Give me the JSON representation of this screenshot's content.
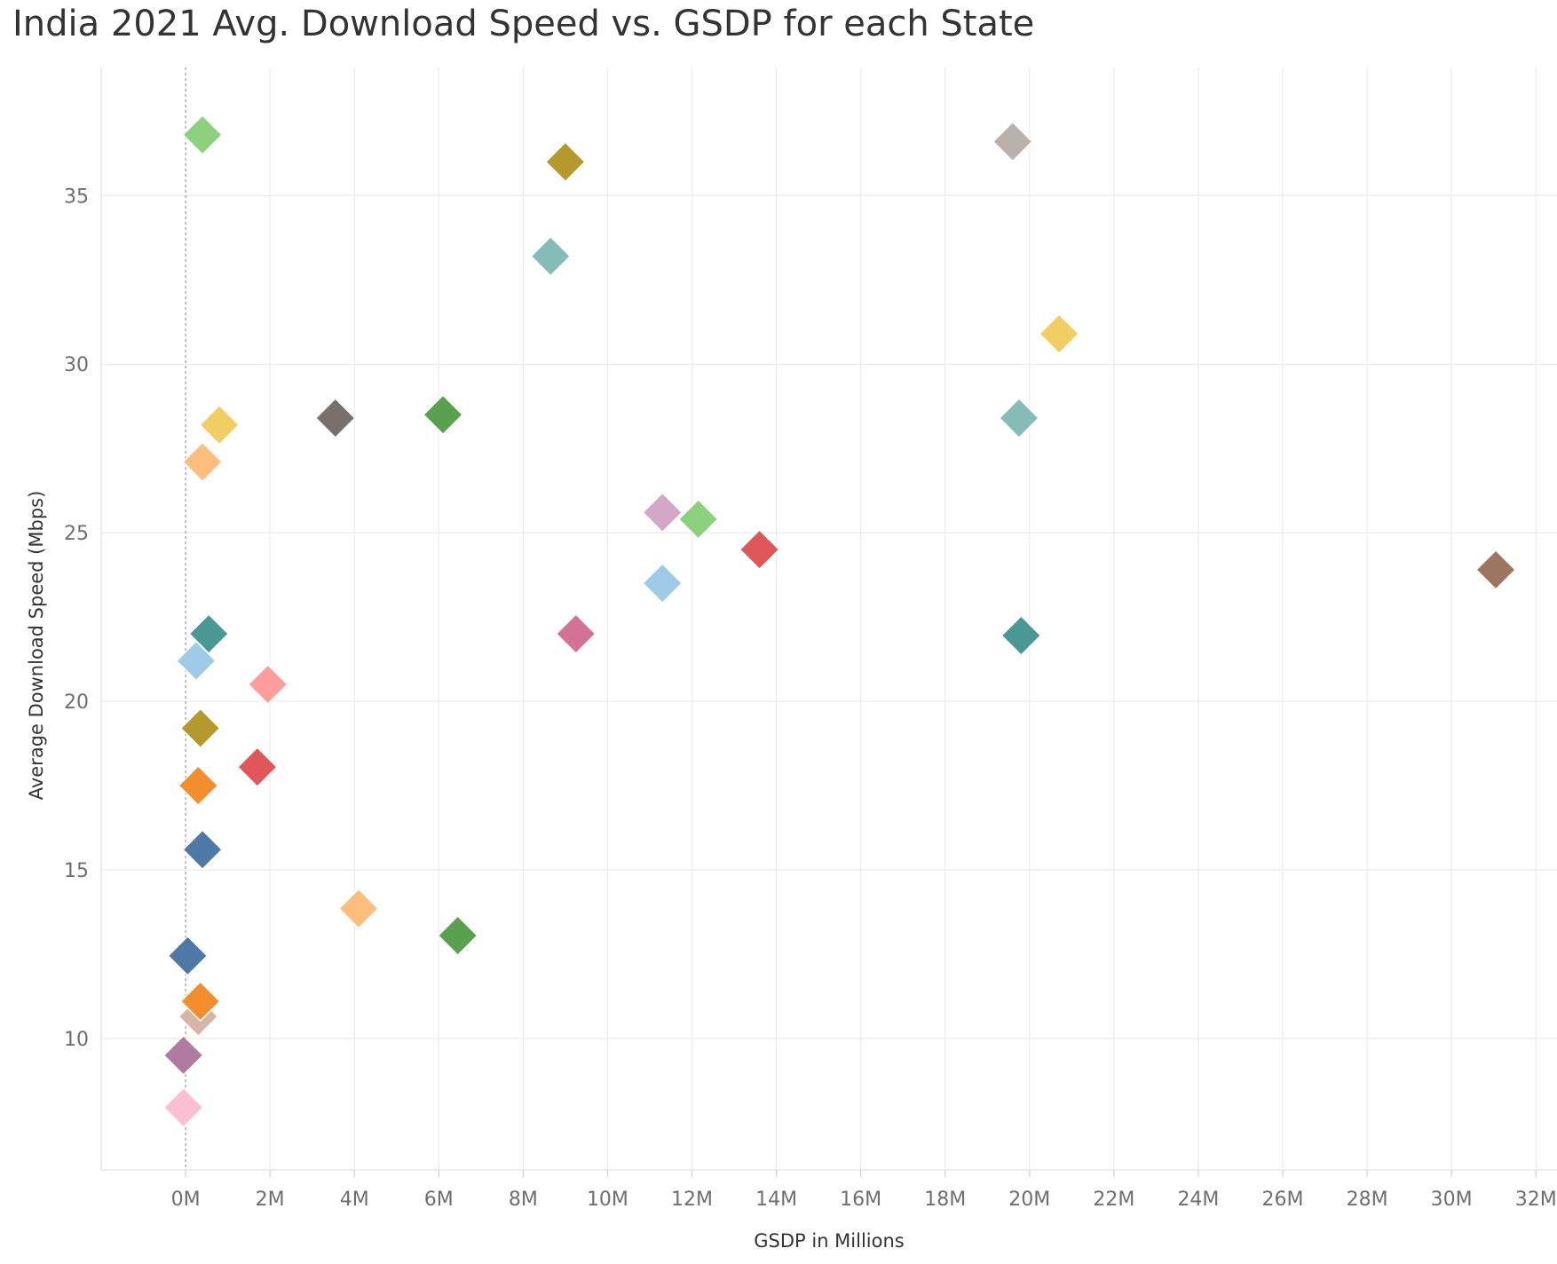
{
  "chart_data": {
    "type": "scatter",
    "title": "India 2021 Avg. Download Speed vs. GSDP for each State",
    "xlabel": "GSDP in Millions",
    "ylabel": "Average Download Speed (Mbps)",
    "xlim": [
      -2,
      32.5
    ],
    "ylim": [
      6.1,
      38.8
    ],
    "x_ticks": [
      0,
      2,
      4,
      6,
      8,
      10,
      12,
      14,
      16,
      18,
      20,
      22,
      24,
      26,
      28,
      30,
      32
    ],
    "x_tick_labels": [
      "0M",
      "2M",
      "4M",
      "6M",
      "8M",
      "10M",
      "12M",
      "14M",
      "16M",
      "18M",
      "20M",
      "22M",
      "24M",
      "26M",
      "28M",
      "30M",
      "32M"
    ],
    "y_ticks": [
      10,
      15,
      20,
      25,
      30,
      35
    ],
    "y_tick_labels": [
      "10",
      "15",
      "20",
      "25",
      "30",
      "35"
    ],
    "grid": true,
    "zero_reference_line": true,
    "marker": "diamond",
    "points": [
      {
        "x": 0.4,
        "y": 36.8,
        "color": "#8cd17d"
      },
      {
        "x": 9.0,
        "y": 36.0,
        "color": "#b6992d"
      },
      {
        "x": 19.6,
        "y": 36.6,
        "color": "#bab0ac"
      },
      {
        "x": 8.65,
        "y": 33.2,
        "color": "#86bcb6"
      },
      {
        "x": 20.7,
        "y": 30.9,
        "color": "#f1ce63"
      },
      {
        "x": 0.8,
        "y": 28.2,
        "color": "#f1ce63"
      },
      {
        "x": 3.55,
        "y": 28.4,
        "color": "#79706e"
      },
      {
        "x": 6.1,
        "y": 28.5,
        "color": "#59a14f"
      },
      {
        "x": 19.75,
        "y": 28.4,
        "color": "#86bcb6"
      },
      {
        "x": 0.4,
        "y": 27.1,
        "color": "#ffbe7d"
      },
      {
        "x": 11.3,
        "y": 25.6,
        "color": "#d4a6c8"
      },
      {
        "x": 12.15,
        "y": 25.4,
        "color": "#8cd17d"
      },
      {
        "x": 13.6,
        "y": 24.5,
        "color": "#e15759"
      },
      {
        "x": 11.3,
        "y": 23.5,
        "color": "#a0cbe8"
      },
      {
        "x": 31.05,
        "y": 23.9,
        "color": "#9d7660"
      },
      {
        "x": 0.55,
        "y": 22.0,
        "color": "#499894"
      },
      {
        "x": 9.25,
        "y": 22.0,
        "color": "#d37295"
      },
      {
        "x": 19.8,
        "y": 21.95,
        "color": "#499894"
      },
      {
        "x": 0.25,
        "y": 21.2,
        "color": "#a0cbe8"
      },
      {
        "x": 1.95,
        "y": 20.5,
        "color": "#ff9d9a"
      },
      {
        "x": 0.35,
        "y": 19.2,
        "color": "#b6992d"
      },
      {
        "x": 1.7,
        "y": 18.05,
        "color": "#e15759"
      },
      {
        "x": 0.3,
        "y": 17.5,
        "color": "#f28e2b"
      },
      {
        "x": 0.4,
        "y": 15.6,
        "color": "#4e79a7"
      },
      {
        "x": 4.1,
        "y": 13.85,
        "color": "#ffbe7d"
      },
      {
        "x": 6.45,
        "y": 13.05,
        "color": "#59a14f"
      },
      {
        "x": 0.05,
        "y": 12.45,
        "color": "#4e79a7"
      },
      {
        "x": 0.3,
        "y": 10.65,
        "color": "#d7b5a6"
      },
      {
        "x": 0.35,
        "y": 11.1,
        "color": "#f28e2b"
      },
      {
        "x": -0.05,
        "y": 9.5,
        "color": "#b07aa1"
      },
      {
        "x": -0.05,
        "y": 7.95,
        "color": "#fabfd2"
      }
    ]
  }
}
